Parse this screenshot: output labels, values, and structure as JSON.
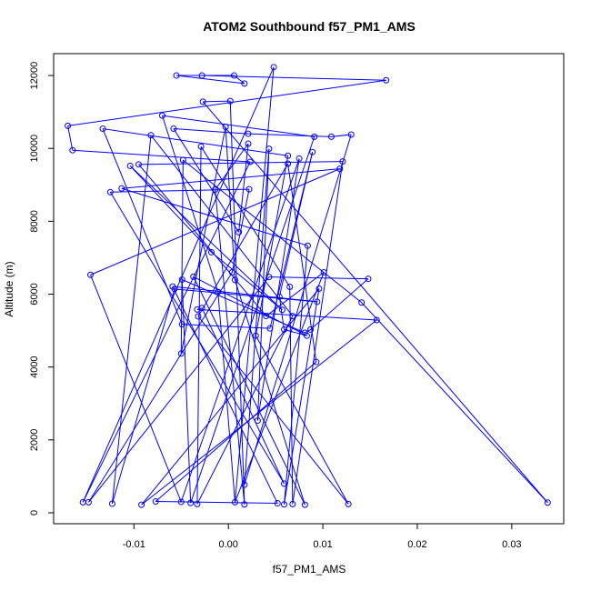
{
  "chart_data": {
    "type": "line",
    "title": "ATOM2 Southbound f57_PM1_AMS",
    "xlabel": "f57_PM1_AMS",
    "ylabel": "Altitude (m)",
    "xlim": [
      -0.0185,
      0.0355
    ],
    "ylim": [
      -300,
      12600
    ],
    "x_ticks": [
      -0.01,
      0.0,
      0.01,
      0.02,
      0.03
    ],
    "x_tick_labels": [
      "-0.01",
      "0.00",
      "0.01",
      "0.02",
      "0.03"
    ],
    "y_ticks": [
      0,
      2000,
      4000,
      6000,
      8000,
      10000,
      12000
    ],
    "y_tick_labels": [
      "0",
      "2000",
      "4000",
      "6000",
      "8000",
      "10000",
      "12000"
    ],
    "grid": false,
    "colors": {
      "series": "#0000ff",
      "axis": "#000000",
      "background": "#ffffff"
    },
    "series": [
      {
        "marker": "open-circle",
        "points": [
          [
            -0.0055,
            12000
          ],
          [
            -0.0028,
            12000
          ],
          [
            0.0006,
            12000
          ],
          [
            0.0048,
            12230
          ],
          [
            0.0017,
            11780
          ],
          [
            0.0167,
            11870
          ],
          [
            -0.0027,
            11280
          ],
          [
            0.0002,
            11300
          ],
          [
            -0.007,
            10900
          ],
          [
            -0.017,
            10620
          ],
          [
            -0.0133,
            10540
          ],
          [
            -0.0058,
            10540
          ],
          [
            -0.0003,
            10590
          ],
          [
            -0.0082,
            10360
          ],
          [
            0.0021,
            10400
          ],
          [
            0.0091,
            10320
          ],
          [
            0.0109,
            10320
          ],
          [
            0.013,
            10380
          ],
          [
            -0.0029,
            10050
          ],
          [
            0.0021,
            10130
          ],
          [
            0.0043,
            9990
          ],
          [
            -0.0165,
            9950
          ],
          [
            0.0089,
            9900
          ],
          [
            0.0063,
            9800
          ],
          [
            0.0075,
            9720
          ],
          [
            -0.0048,
            9680
          ],
          [
            -0.0104,
            9520
          ],
          [
            -0.0095,
            9560
          ],
          [
            0.0023,
            9630
          ],
          [
            0.0063,
            9580
          ],
          [
            0.0118,
            9440
          ],
          [
            0.0121,
            9640
          ],
          [
            -0.0113,
            8900
          ],
          [
            -0.0125,
            8800
          ],
          [
            -0.0014,
            8870
          ],
          [
            0.0022,
            8880
          ],
          [
            0.0011,
            7700
          ],
          [
            0.0084,
            7330
          ],
          [
            -0.0018,
            7150
          ],
          [
            -0.0146,
            6530
          ],
          [
            -0.0037,
            6480
          ],
          [
            0.0004,
            6600
          ],
          [
            0.0043,
            6470
          ],
          [
            0.0101,
            6600
          ],
          [
            -0.0049,
            6400
          ],
          [
            -0.0059,
            6210
          ],
          [
            0.0007,
            6390
          ],
          [
            0.0148,
            6420
          ],
          [
            -0.0057,
            6140
          ],
          [
            -0.0011,
            6060
          ],
          [
            0.0065,
            6200
          ],
          [
            0.0096,
            6150
          ],
          [
            0.0054,
            5930
          ],
          [
            0.0094,
            5790
          ],
          [
            0.0141,
            5770
          ],
          [
            -0.0033,
            5580
          ],
          [
            -0.0028,
            5620
          ],
          [
            0.0057,
            5570
          ],
          [
            0.004,
            5400
          ],
          [
            0.0068,
            5400
          ],
          [
            -0.0032,
            5390
          ],
          [
            0.0157,
            5290
          ],
          [
            -0.0049,
            5170
          ],
          [
            0.0044,
            5060
          ],
          [
            0.0059,
            5030
          ],
          [
            0.0087,
            5030
          ],
          [
            0.0081,
            4940
          ],
          [
            0.0083,
            4860
          ],
          [
            0.0029,
            4860
          ],
          [
            -0.005,
            4370
          ],
          [
            0.0093,
            4140
          ],
          [
            0.0031,
            2530
          ],
          [
            0.0017,
            770
          ],
          [
            0.0059,
            800
          ],
          [
            -0.0154,
            290
          ],
          [
            -0.0148,
            290
          ],
          [
            -0.0123,
            250
          ],
          [
            -0.0092,
            220
          ],
          [
            -0.0077,
            310
          ],
          [
            -0.005,
            300
          ],
          [
            -0.004,
            270
          ],
          [
            -0.0033,
            240
          ],
          [
            0.0007,
            290
          ],
          [
            0.0017,
            230
          ],
          [
            0.0052,
            260
          ],
          [
            0.0059,
            230
          ],
          [
            0.0068,
            240
          ],
          [
            0.0081,
            220
          ],
          [
            0.0127,
            240
          ],
          [
            0.0338,
            280
          ]
        ],
        "segments": [
          [
            0,
            2
          ],
          [
            1,
            5
          ],
          [
            2,
            4
          ],
          [
            3,
            82
          ],
          [
            4,
            0
          ],
          [
            5,
            9
          ],
          [
            6,
            7
          ],
          [
            7,
            83
          ],
          [
            8,
            49
          ],
          [
            9,
            21
          ],
          [
            10,
            62
          ],
          [
            11,
            14
          ],
          [
            12,
            69
          ],
          [
            13,
            76
          ],
          [
            14,
            16
          ],
          [
            15,
            8
          ],
          [
            16,
            17
          ],
          [
            17,
            72
          ],
          [
            18,
            81
          ],
          [
            19,
            36
          ],
          [
            20,
            71
          ],
          [
            21,
            28
          ],
          [
            22,
            52
          ],
          [
            23,
            10
          ],
          [
            24,
            79
          ],
          [
            25,
            54
          ],
          [
            26,
            57
          ],
          [
            27,
            31
          ],
          [
            28,
            74
          ],
          [
            29,
            60
          ],
          [
            30,
            32
          ],
          [
            31,
            86
          ],
          [
            32,
            37
          ],
          [
            33,
            35
          ],
          [
            34,
            19
          ],
          [
            35,
            41
          ],
          [
            36,
            11
          ],
          [
            37,
            85
          ],
          [
            38,
            26
          ],
          [
            39,
            30
          ],
          [
            40,
            87
          ],
          [
            41,
            75
          ],
          [
            42,
            47
          ],
          [
            43,
            58
          ],
          [
            44,
            80
          ],
          [
            45,
            84
          ],
          [
            46,
            12
          ],
          [
            47,
            65
          ],
          [
            48,
            53
          ],
          [
            49,
            82
          ],
          [
            50,
            18
          ],
          [
            51,
            77
          ],
          [
            52,
            64
          ],
          [
            53,
            45
          ],
          [
            54,
            89
          ],
          [
            55,
            56
          ],
          [
            56,
            73
          ],
          [
            57,
            38
          ],
          [
            58,
            27
          ],
          [
            59,
            13
          ],
          [
            60,
            88
          ],
          [
            61,
            55
          ],
          [
            62,
            63
          ],
          [
            63,
            22
          ],
          [
            64,
            67
          ],
          [
            65,
            66
          ],
          [
            66,
            44
          ],
          [
            67,
            40
          ],
          [
            68,
            23
          ],
          [
            69,
            25
          ],
          [
            70,
            29
          ],
          [
            71,
            24
          ],
          [
            72,
            20
          ],
          [
            73,
            33
          ],
          [
            74,
            3
          ],
          [
            75,
            42
          ],
          [
            76,
            48
          ],
          [
            77,
            61
          ],
          [
            78,
            70
          ],
          [
            79,
            39
          ],
          [
            80,
            15
          ],
          [
            81,
            59
          ],
          [
            82,
            43
          ],
          [
            83,
            34
          ],
          [
            84,
            78
          ],
          [
            85,
            51
          ],
          [
            86,
            50
          ],
          [
            87,
            46
          ],
          [
            88,
            68
          ],
          [
            89,
            6
          ]
        ]
      }
    ]
  }
}
